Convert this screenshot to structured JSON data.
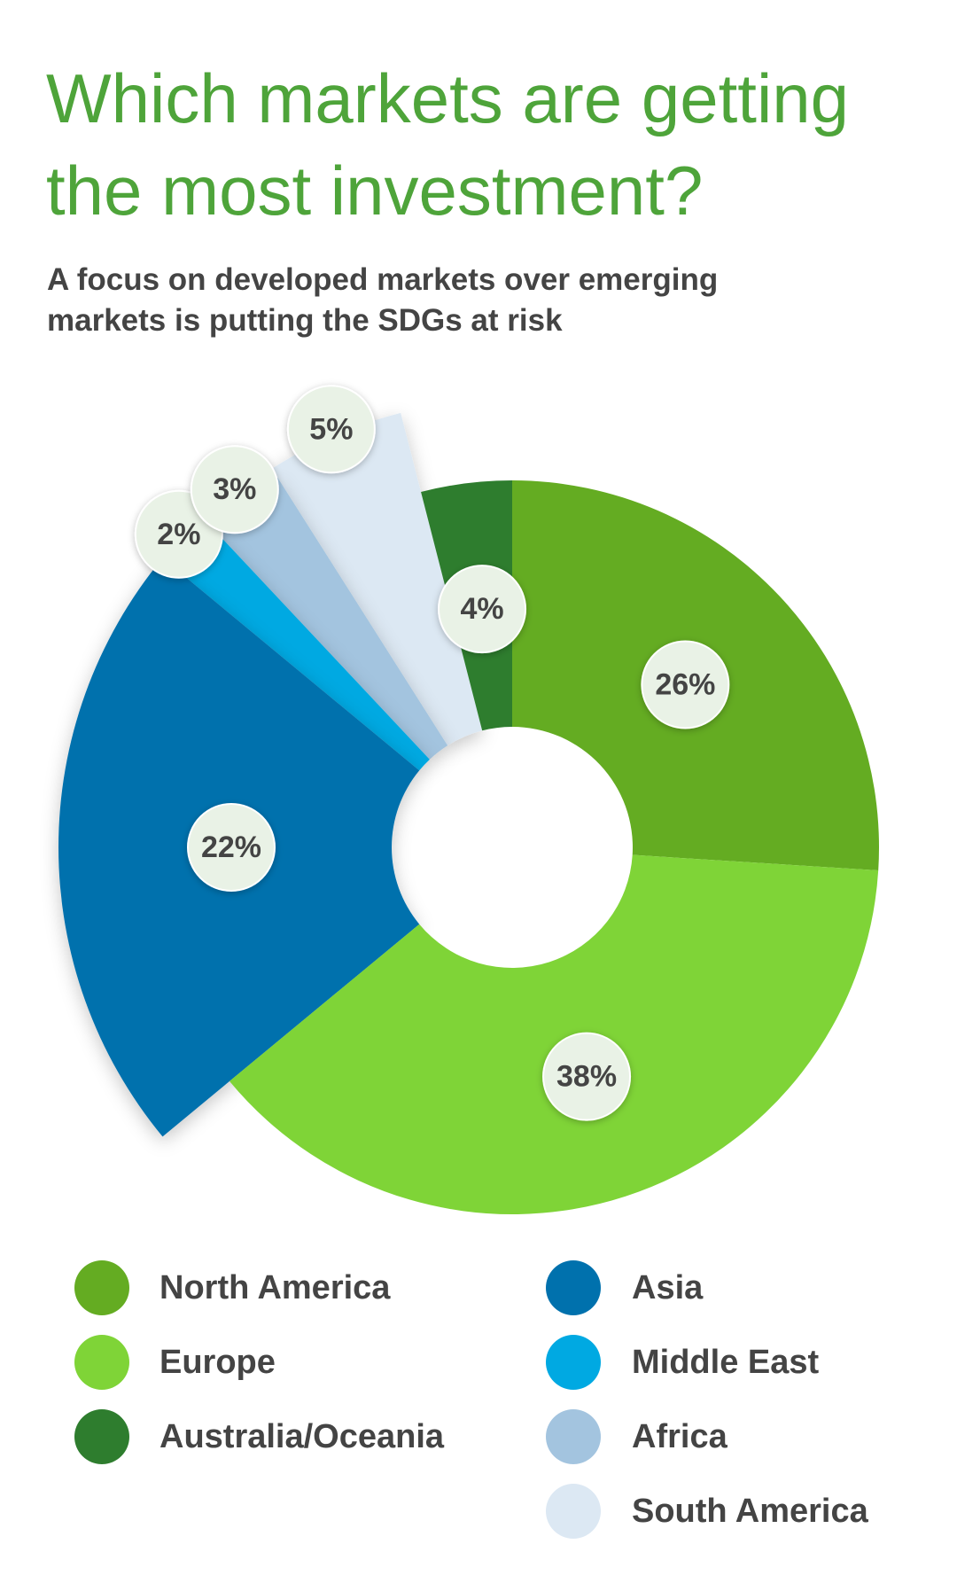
{
  "chart_data": {
    "type": "pie",
    "title": "Which markets are getting the most investment?",
    "subtitle": "A focus on developed markets over emerging markets is putting the SDGs at risk",
    "categories": [
      "North America",
      "Europe",
      "Asia",
      "Middle East",
      "Africa",
      "South America",
      "Australia/Oceania"
    ],
    "values": [
      26,
      38,
      22,
      2,
      3,
      5,
      4
    ],
    "value_labels": [
      "26%",
      "38%",
      "22%",
      "2%",
      "3%",
      "5%",
      "4%"
    ],
    "colors": [
      "#64ac22",
      "#7fd437",
      "#0071ad",
      "#00a9e2",
      "#a3c4df",
      "#dce8f3",
      "#2e7d2e"
    ]
  }
}
